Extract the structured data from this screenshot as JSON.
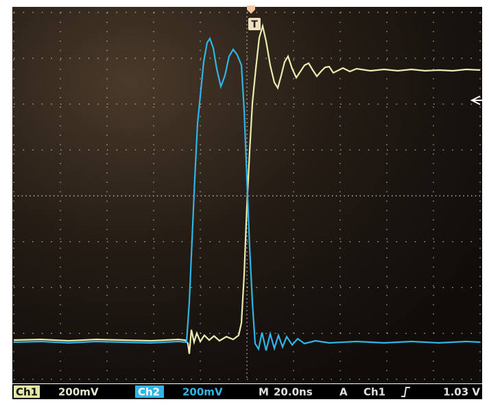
{
  "trigger_marker": "T",
  "status_bar": {
    "ch1_label": "Ch1",
    "ch1_scale": "200mV",
    "ch2_label": "Ch2",
    "ch2_scale": "200mV",
    "timebase_label": "M",
    "timebase": "20.0ns",
    "trigger_label": "A",
    "trigger_source": "Ch1",
    "trigger_level": "1.03 V"
  }
}
